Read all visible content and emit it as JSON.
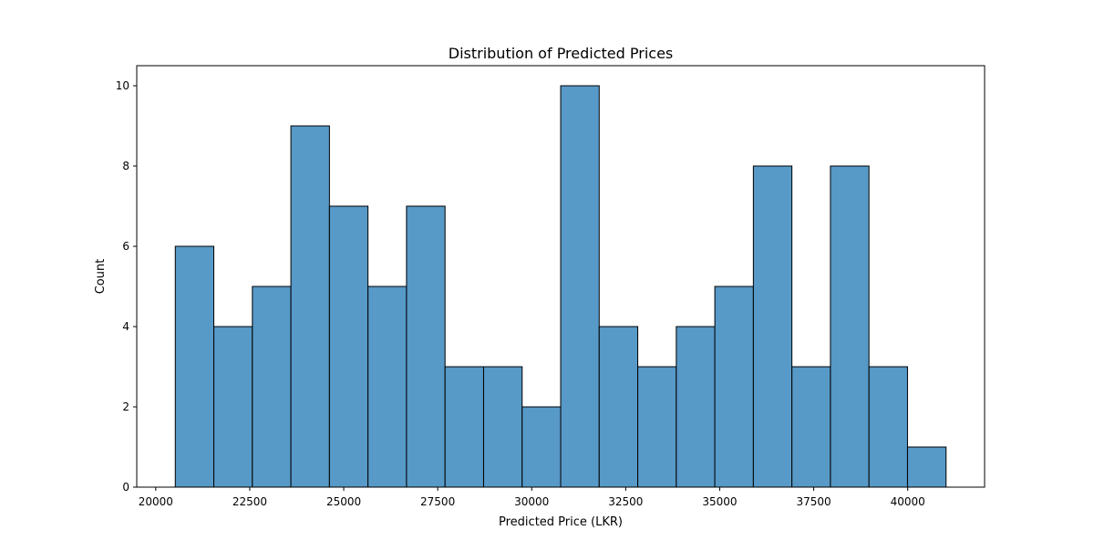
{
  "chart_data": {
    "type": "bar",
    "title": "Distribution of Predicted Prices",
    "xlabel": "Predicted Price (LKR)",
    "ylabel": "Count",
    "bin_edges": [
      20520,
      21545,
      22570,
      23595,
      24620,
      25645,
      26670,
      27695,
      28720,
      29745,
      30770,
      31795,
      32820,
      33845,
      34870,
      35895,
      36920,
      37945,
      38970,
      39995,
      41020
    ],
    "values": [
      6,
      4,
      5,
      9,
      7,
      5,
      7,
      3,
      3,
      2,
      10,
      4,
      3,
      4,
      5,
      8,
      3,
      8,
      3,
      1
    ],
    "xlim": [
      19495,
      42045
    ],
    "ylim": [
      0,
      10.5
    ],
    "xticks": [
      20000,
      22500,
      25000,
      27500,
      30000,
      32500,
      35000,
      37500,
      40000
    ],
    "yticks": [
      0,
      2,
      4,
      6,
      8,
      10
    ],
    "grid": false,
    "colors": {
      "bar_fill": "#5799c7",
      "bar_edge": "#000000"
    }
  }
}
